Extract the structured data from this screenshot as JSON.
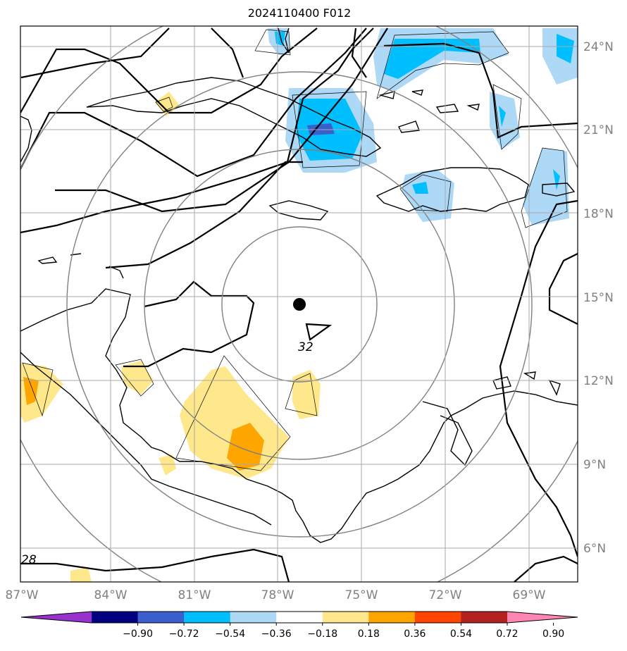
{
  "title": "2024110400 F012",
  "map": {
    "lon_range": [
      -87,
      -66.5
    ],
    "lat_range": [
      5,
      24.8
    ],
    "lon_ticks": [
      "87°W",
      "84°W",
      "81°W",
      "78°W",
      "75°W",
      "72°W",
      "69°W"
    ],
    "lat_ticks": [
      "6°N",
      "9°N",
      "12°N",
      "15°N",
      "18°N",
      "21°N",
      "24°N"
    ],
    "gridlines": true,
    "center_marker": {
      "lon": -77.3,
      "lat": 14.8
    },
    "contour_labels": [
      "32",
      "28"
    ]
  },
  "colorbar": {
    "labels": [
      "−0.90",
      "−0.72",
      "−0.54",
      "−0.36",
      "−0.18",
      "0.18",
      "0.36",
      "0.54",
      "0.72",
      "0.90"
    ],
    "colors": [
      "#9932cc",
      "#000080",
      "#3a5fcd",
      "#00bfff",
      "#add8f6",
      "#ffffff",
      "#ffe88c",
      "#ffa500",
      "#ff4500",
      "#b22222",
      "#ff85b4"
    ]
  }
}
